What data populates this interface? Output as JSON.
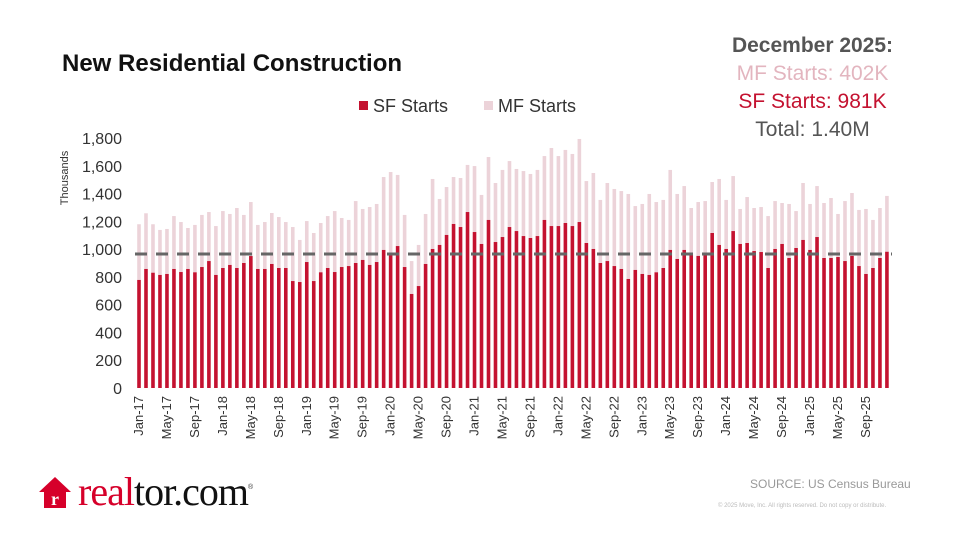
{
  "title": "New Residential Construction",
  "summary": {
    "heading": "December 2025:",
    "mf": "MF Starts: 402K",
    "sf": "SF Starts:  981K",
    "total": "Total:  1.40M"
  },
  "source": "SOURCE: US Census Bureau",
  "copyright": "© 2025 Move, Inc. All rights reserved. Do not copy or distribute.",
  "logo_text": "realtor.com",
  "colors": {
    "sf": "#c41230",
    "mf": "#ecd3d9",
    "reference_line": "#666666"
  },
  "chart_data": {
    "type": "bar",
    "stacked": true,
    "title": "New Residential Construction",
    "ylabel": "Thousands",
    "ylim": [
      0,
      1800
    ],
    "yticks": [
      "0",
      "200",
      "400",
      "600",
      "800",
      "1,000",
      "1,200",
      "1,400",
      "1,600",
      "1,800"
    ],
    "ytick_values": [
      0,
      200,
      400,
      600,
      800,
      1000,
      1200,
      1400,
      1600,
      1800
    ],
    "legend": {
      "position": "top",
      "entries": [
        "SF Starts",
        "MF Starts"
      ]
    },
    "grid": false,
    "xtick_labels": [
      "Jan-17",
      "May-17",
      "Sep-17",
      "Jan-18",
      "May-18",
      "Sep-18",
      "Jan-19",
      "May-19",
      "Sep-19",
      "Jan-20",
      "May-20",
      "Sep-20",
      "Jan-21",
      "May-21",
      "Sep-21",
      "Jan-22",
      "May-22",
      "Sep-22",
      "Jan-23",
      "May-23",
      "Sep-23",
      "Jan-24",
      "May-24",
      "Sep-24",
      "Jan-25",
      "May-25",
      "Sep-25"
    ],
    "categories": [
      "Jan-17",
      "Feb-17",
      "Mar-17",
      "Apr-17",
      "May-17",
      "Jun-17",
      "Jul-17",
      "Aug-17",
      "Sep-17",
      "Oct-17",
      "Nov-17",
      "Dec-17",
      "Jan-18",
      "Feb-18",
      "Mar-18",
      "Apr-18",
      "May-18",
      "Jun-18",
      "Jul-18",
      "Aug-18",
      "Sep-18",
      "Oct-18",
      "Nov-18",
      "Dec-18",
      "Jan-19",
      "Feb-19",
      "Mar-19",
      "Apr-19",
      "May-19",
      "Jun-19",
      "Jul-19",
      "Aug-19",
      "Sep-19",
      "Oct-19",
      "Nov-19",
      "Dec-19",
      "Jan-20",
      "Feb-20",
      "Mar-20",
      "Apr-20",
      "May-20",
      "Jun-20",
      "Jul-20",
      "Aug-20",
      "Sep-20",
      "Oct-20",
      "Nov-20",
      "Dec-20",
      "Jan-21",
      "Feb-21",
      "Mar-21",
      "Apr-21",
      "May-21",
      "Jun-21",
      "Jul-21",
      "Aug-21",
      "Sep-21",
      "Oct-21",
      "Nov-21",
      "Dec-21",
      "Jan-22",
      "Feb-22",
      "Mar-22",
      "Apr-22",
      "May-22",
      "Jun-22",
      "Jul-22",
      "Aug-22",
      "Sep-22",
      "Oct-22",
      "Nov-22",
      "Dec-22",
      "Jan-23",
      "Feb-23",
      "Mar-23",
      "Apr-23",
      "May-23",
      "Jun-23",
      "Jul-23",
      "Aug-23",
      "Sep-23",
      "Oct-23",
      "Nov-23",
      "Dec-23",
      "Jan-24",
      "Feb-24",
      "Mar-24",
      "Apr-24",
      "May-24",
      "Jun-24",
      "Jul-24",
      "Aug-24",
      "Sep-24",
      "Oct-24",
      "Nov-24",
      "Dec-24",
      "Jan-25",
      "Feb-25",
      "Mar-25",
      "Apr-25",
      "May-25",
      "Jun-25",
      "Jul-25",
      "Aug-25",
      "Sep-25",
      "Oct-25",
      "Nov-25",
      "Dec-25"
    ],
    "series": [
      {
        "name": "SF Starts",
        "values": [
          778,
          857,
          830,
          814,
          821,
          857,
          835,
          857,
          833,
          871,
          914,
          814,
          864,
          886,
          864,
          900,
          950,
          857,
          857,
          893,
          864,
          864,
          770,
          763,
          907,
          770,
          833,
          864,
          835,
          871,
          878,
          900,
          922,
          886,
          907,
          994,
          965,
          1022,
          871,
          677,
          734,
          893,
          1001,
          1030,
          1102,
          1181,
          1159,
          1267,
          1123,
          1037,
          1210,
          1051,
          1087,
          1159,
          1130,
          1094,
          1080,
          1094,
          1210,
          1166,
          1166,
          1188,
          1166,
          1195,
          1044,
          1001,
          900,
          914,
          878,
          857,
          785,
          850,
          821,
          814,
          833,
          864,
          994,
          929,
          994,
          958,
          951,
          972,
          1116,
          1030,
          1001,
          1130,
          1037,
          1044,
          986,
          979,
          864,
          1001,
          1037,
          936,
          1008,
          1066,
          994,
          1087,
          936,
          936,
          943,
          914,
          951,
          878,
          821,
          864,
          936,
          981
        ]
      },
      {
        "name": "MF Starts",
        "values": [
          401,
          401,
          349,
          324,
          324,
          381,
          360,
          295,
          341,
          375,
          353,
          352,
          410,
          367,
          432,
          346,
          389,
          317,
          338,
          367,
          367,
          331,
          389,
          303,
          295,
          346,
          355,
          374,
          439,
          353,
          332,
          446,
          367,
          417,
          418,
          525,
          590,
          512,
          375,
          237,
          296,
          360,
          504,
          331,
          345,
          338,
          353,
          339,
          475,
          353,
          453,
          425,
          483,
          475,
          447,
          468,
          461,
          476,
          460,
          562,
          504,
          526,
          519,
          598,
          446,
          547,
          454,
          562,
          555,
          561,
          612,
          460,
          504,
          583,
          506,
          490,
          576,
          468,
          460,
          338,
          388,
          374,
          367,
          475,
          353,
          396,
          252,
          331,
          310,
          324,
          374,
          345,
          295,
          389,
          266,
          410,
          331,
          367,
          396,
          432,
          310,
          432,
          453,
          404,
          468,
          346,
          360,
          402
        ]
      }
    ],
    "reference_line": {
      "style": "dashed",
      "value": 965
    }
  }
}
